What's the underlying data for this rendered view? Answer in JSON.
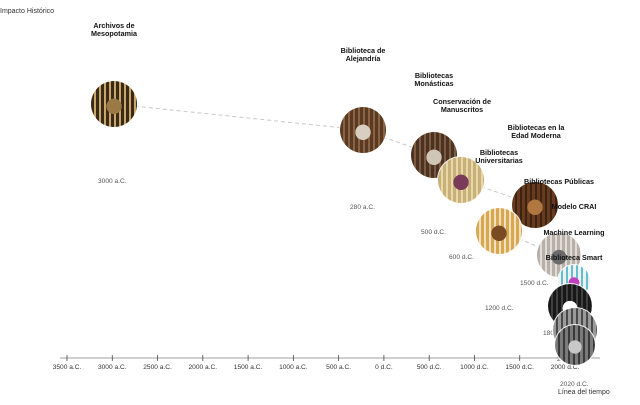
{
  "axes": {
    "y_label": "Impacto Histórico",
    "x_label": "Línea del tiempo",
    "ticks": [
      "3500 a.C.",
      "3000 a.C.",
      "2500 a.C.",
      "2000 a.C.",
      "1500 a.C.",
      "1000 a.C.",
      "500 a.C.",
      "0 d.C.",
      "500 d.C.",
      "1000 d.C.",
      "1500 d.C.",
      "2000 d.C."
    ],
    "tick_years": [
      -3500,
      -3000,
      -2500,
      -2000,
      -1500,
      -1000,
      -500,
      0,
      500,
      1000,
      1500,
      2000
    ]
  },
  "colors": {
    "connector": "#c8c8c8",
    "axis": "#444444"
  },
  "milestones": [
    {
      "title_lines": [
        "Archivos de",
        "Mesopotamia"
      ],
      "date": "3000 a.C.",
      "photo": [
        "#3a2a18",
        "#9c7a46",
        "#c9a66b"
      ]
    },
    {
      "title_lines": [
        "Biblioteca de",
        "Alejandría"
      ],
      "date": "280 a.C.",
      "photo": [
        "#5a3a22",
        "#d8cfc0",
        "#8a6244"
      ]
    },
    {
      "title_lines": [
        "Bibliotecas",
        "Monásticas"
      ],
      "date": "500 d.C.",
      "photo": [
        "#4b3324",
        "#cfc6b8",
        "#7e5a40"
      ]
    },
    {
      "title_lines": [
        "Conservación de",
        "Manuscritos"
      ],
      "date": "600 d.C.",
      "photo": [
        "#c8b07a",
        "#7a3a5a",
        "#e8d8a8"
      ]
    },
    {
      "title_lines": [
        "Bibliotecas en la",
        "Edad Moderna"
      ],
      "date": "",
      "photo": [
        "#6a3a1e",
        "#b07840",
        "#3a2412"
      ]
    },
    {
      "title_lines": [
        "Bibliotecas",
        "Universitarias"
      ],
      "date": "",
      "photo": [
        "#d8a850",
        "#7a4a22",
        "#f0e0c0"
      ]
    },
    {
      "title_lines": [
        "Bibliotecas Públicas"
      ],
      "date": "1500 d.C.",
      "photo": [
        "#b8b0a8",
        "#6a6a6a",
        "#e0dcd8"
      ]
    },
    {
      "title_lines": [
        "Modelo CRAI"
      ],
      "date": "1200 d.C.",
      "photo": [
        "#f0f0f0",
        "#c040c0",
        "#60c0d0"
      ]
    },
    {
      "title_lines": [
        "Machine Learning"
      ],
      "date": "1800 d.C.",
      "photo": [
        "#181818",
        "#ffffff",
        "#404040"
      ]
    },
    {
      "title_lines": [
        "Biblioteca Smart"
      ],
      "date": "2000 d.C.",
      "photo": [
        "#9a9a9a",
        "#d8d8d8",
        "#4a4a4a"
      ]
    },
    {
      "title_lines": [],
      "date": "2020 d.C.",
      "photo": [
        "#7a7a7a",
        "#c8c8c8",
        "#3a3a3a"
      ]
    }
  ]
}
